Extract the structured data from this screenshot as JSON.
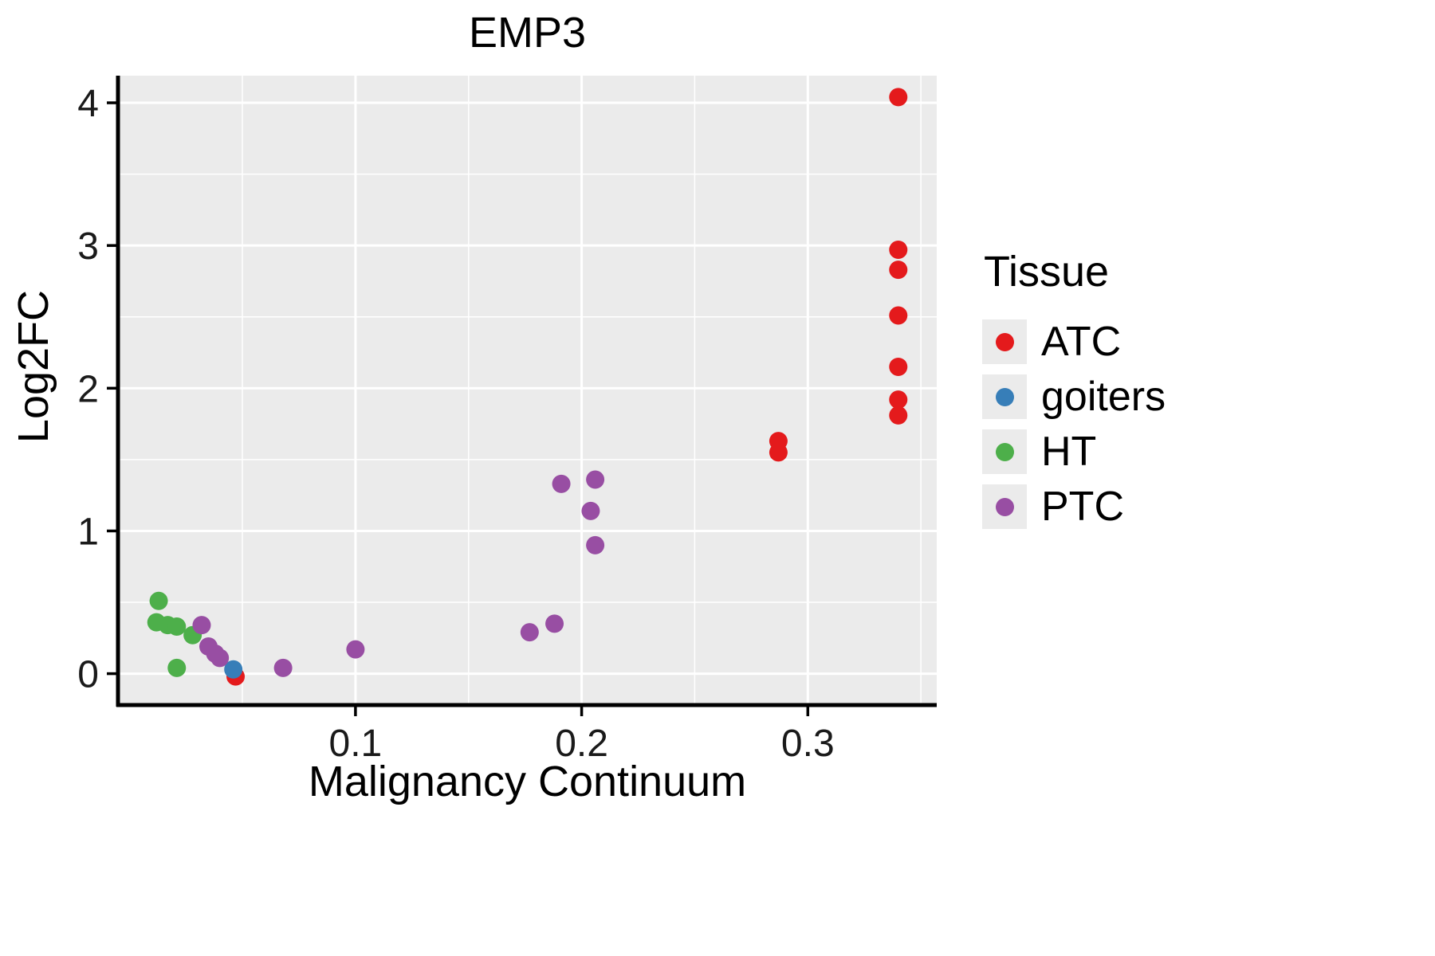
{
  "figure": {
    "background": "#ffffff",
    "panel_background": "#EBEBEB",
    "grid_color": "#ffffff",
    "axis_color": "#000000",
    "tick_label_color": "#1a1a1a",
    "text_color": "#000000"
  },
  "chart_data": {
    "type": "scatter",
    "title": "EMP3",
    "xlabel": "Malignancy Continuum",
    "ylabel": "Log2FC",
    "legend_title": "Tissue",
    "legend_position": "right",
    "grid": true,
    "xlim": [
      -0.005,
      0.357
    ],
    "ylim": [
      -0.22,
      4.19
    ],
    "xticks": [
      0.1,
      0.2,
      0.3
    ],
    "xtick_labels": [
      "0.1",
      "0.2",
      "0.3"
    ],
    "yticks": [
      0,
      1,
      2,
      3,
      4
    ],
    "ytick_labels": [
      "0",
      "1",
      "2",
      "3",
      "4"
    ],
    "xminor": [
      0.05,
      0.15,
      0.25,
      0.35
    ],
    "yminor": [
      0.5,
      1.5,
      2.5,
      3.5
    ],
    "point_radius": 11.5,
    "series": [
      {
        "name": "ATC",
        "color": "#E41A1C",
        "points": [
          [
            0.34,
            4.04
          ],
          [
            0.34,
            2.97
          ],
          [
            0.34,
            2.83
          ],
          [
            0.34,
            2.51
          ],
          [
            0.34,
            2.15
          ],
          [
            0.34,
            1.92
          ],
          [
            0.34,
            1.81
          ],
          [
            0.287,
            1.63
          ],
          [
            0.287,
            1.55
          ],
          [
            0.047,
            -0.02
          ]
        ]
      },
      {
        "name": "goiters",
        "color": "#377EB8",
        "points": [
          [
            0.046,
            0.03
          ]
        ]
      },
      {
        "name": "HT",
        "color": "#4DAF4A",
        "points": [
          [
            0.013,
            0.51
          ],
          [
            0.012,
            0.36
          ],
          [
            0.017,
            0.34
          ],
          [
            0.021,
            0.33
          ],
          [
            0.021,
            0.04
          ],
          [
            0.028,
            0.27
          ]
        ]
      },
      {
        "name": "PTC",
        "color": "#984EA3",
        "points": [
          [
            0.032,
            0.34
          ],
          [
            0.035,
            0.19
          ],
          [
            0.038,
            0.14
          ],
          [
            0.04,
            0.11
          ],
          [
            0.068,
            0.04
          ],
          [
            0.1,
            0.17
          ],
          [
            0.177,
            0.29
          ],
          [
            0.188,
            0.35
          ],
          [
            0.191,
            1.33
          ],
          [
            0.206,
            1.36
          ],
          [
            0.204,
            1.14
          ],
          [
            0.206,
            0.9
          ]
        ]
      }
    ]
  }
}
